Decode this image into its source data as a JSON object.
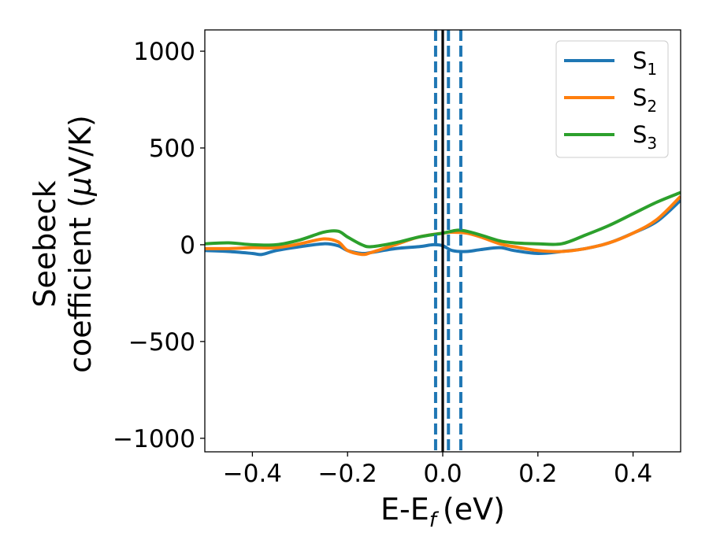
{
  "chart_data": {
    "type": "line",
    "xlabel": "E-E",
    "xlabel_sub": "f",
    "xlabel_unit": "(eV)",
    "ylabel_line1": "Seebeck",
    "ylabel_line2": "coefficient  (",
    "ylabel_mu": "μ",
    "ylabel_unit": "V/K)",
    "xlim": [
      -0.5,
      0.5
    ],
    "ylim": [
      -1070,
      1110
    ],
    "x_ticks": [
      -0.4,
      -0.2,
      0.0,
      0.2,
      0.4
    ],
    "x_tick_labels": [
      "−0.4",
      "−0.2",
      "0.0",
      "0.2",
      "0.4"
    ],
    "y_ticks": [
      1000,
      500,
      0,
      -500,
      -1000
    ],
    "y_tick_labels": [
      "1000",
      "500",
      "0",
      "−500",
      "−1000"
    ],
    "grid": false,
    "legend_position": "top-right",
    "vertical_lines": [
      {
        "x": -0.015,
        "style": "dashed",
        "color": "#1f77b4"
      },
      {
        "x": 0.0,
        "style": "solid",
        "color": "#000000"
      },
      {
        "x": 0.012,
        "style": "dashed",
        "color": "#1f77b4"
      },
      {
        "x": 0.038,
        "style": "dashed",
        "color": "#1f77b4"
      }
    ],
    "series": [
      {
        "name": "S",
        "name_sub": "1",
        "color": "#1f77b4",
        "x": [
          -0.5,
          -0.45,
          -0.4,
          -0.38,
          -0.35,
          -0.3,
          -0.25,
          -0.22,
          -0.2,
          -0.17,
          -0.15,
          -0.1,
          -0.05,
          -0.02,
          0.0,
          0.02,
          0.05,
          0.08,
          0.12,
          0.15,
          0.2,
          0.25,
          0.3,
          0.35,
          0.4,
          0.45,
          0.5
        ],
        "values": [
          -30,
          -35,
          -45,
          -50,
          -30,
          -10,
          5,
          -5,
          -30,
          -45,
          -40,
          -20,
          -10,
          0,
          -5,
          -30,
          -35,
          -25,
          -15,
          -30,
          -45,
          -35,
          -20,
          10,
          60,
          120,
          230
        ]
      },
      {
        "name": "S",
        "name_sub": "2",
        "color": "#ff7f0e",
        "x": [
          -0.5,
          -0.45,
          -0.4,
          -0.35,
          -0.3,
          -0.25,
          -0.22,
          -0.2,
          -0.17,
          -0.15,
          -0.1,
          -0.05,
          0.0,
          0.02,
          0.05,
          0.08,
          0.12,
          0.15,
          0.2,
          0.25,
          0.3,
          0.35,
          0.4,
          0.45,
          0.5
        ],
        "values": [
          -20,
          -20,
          -15,
          -15,
          5,
          30,
          15,
          -30,
          -50,
          -40,
          0,
          40,
          60,
          65,
          60,
          40,
          5,
          -10,
          -30,
          -35,
          -20,
          10,
          60,
          130,
          250
        ]
      },
      {
        "name": "S",
        "name_sub": "3",
        "color": "#2ca02c",
        "x": [
          -0.5,
          -0.45,
          -0.4,
          -0.35,
          -0.3,
          -0.25,
          -0.22,
          -0.2,
          -0.17,
          -0.15,
          -0.1,
          -0.05,
          0.0,
          0.03,
          0.05,
          0.08,
          0.12,
          0.15,
          0.2,
          0.25,
          0.3,
          0.35,
          0.4,
          0.45,
          0.5
        ],
        "values": [
          5,
          10,
          0,
          0,
          25,
          65,
          70,
          40,
          0,
          -10,
          10,
          40,
          60,
          75,
          70,
          50,
          20,
          10,
          5,
          5,
          50,
          100,
          160,
          220,
          270
        ]
      }
    ]
  }
}
